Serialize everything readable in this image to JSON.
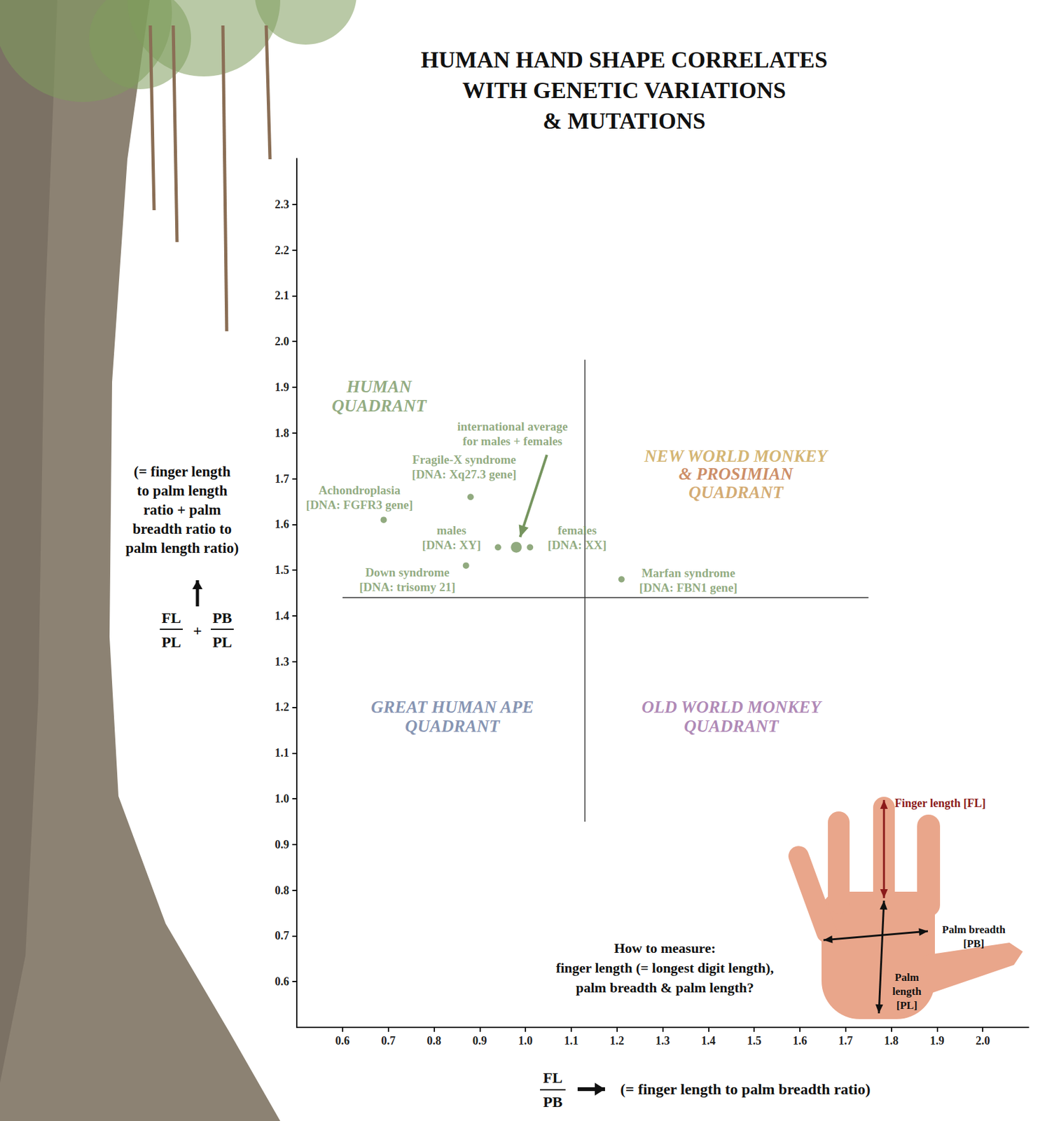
{
  "chart_data": {
    "type": "scatter",
    "title": "HUMAN HAND SHAPE CORRELATES\nWITH GENETIC VARIATIONS\n& MUTATIONS",
    "xlabel": "(= finger length to palm breadth ratio)",
    "x_formula": {
      "numerator": "FL",
      "denominator": "PB"
    },
    "ylabel": "(= finger length\nto palm length\nratio + palm\nbreadth ratio to\npalm length ratio)",
    "y_formula": {
      "terms": [
        {
          "numerator": "FL",
          "denominator": "PL"
        },
        {
          "numerator": "PB",
          "denominator": "PL"
        }
      ],
      "operator": "+"
    },
    "xlim": [
      0.5,
      2.1
    ],
    "ylim": [
      0.5,
      2.4
    ],
    "xticks": [
      0.6,
      0.7,
      0.8,
      0.9,
      {
        "value": 1,
        "label": "1.0"
      },
      1.1,
      1.2,
      1.3,
      1.4,
      1.5,
      1.6,
      1.7,
      1.8,
      1.9,
      {
        "value": 2,
        "label": "2.0"
      }
    ],
    "yticks": [
      0.6,
      0.7,
      0.8,
      0.9,
      {
        "value": 1,
        "label": "1.0"
      },
      1.1,
      1.2,
      1.3,
      1.4,
      1.5,
      1.6,
      1.7,
      1.8,
      1.9,
      {
        "value": 2,
        "label": "2.0"
      },
      2.1,
      2.2,
      2.3
    ],
    "grid": false,
    "series": [
      {
        "color": "#76955f",
        "marker": "circle",
        "x": [
          0.69,
          0.88,
          0.87,
          0.94,
          1.01,
          1.21
        ],
        "values": [
          1.61,
          1.66,
          1.51,
          1.55,
          1.55,
          1.48
        ],
        "labels": [
          "Achondroplasia\n[DNA: FGFR3 gene]",
          "Fragile-X syndrome\n[DNA: Xq27.3 gene]",
          "Down syndrome\n[DNA: trisomy 21]",
          "males\n[DNA: XY]",
          "females\n[DNA: XX]",
          "Marfan syndrome\n[DNA: FBN1 gene]"
        ]
      },
      {
        "color": "#76955f",
        "marker": "large_circle",
        "x": [
          0.98
        ],
        "values": [
          1.55
        ],
        "labels": [
          "international average\nfor males + females"
        ]
      }
    ],
    "quadrant_lines": [
      {
        "x": [
          1.13,
          1.13
        ],
        "y": [
          0.95,
          1.96
        ],
        "color": "#333333"
      },
      {
        "x": [
          0.6,
          1.75
        ],
        "y": [
          1.44,
          1.44
        ],
        "color": "#333333"
      }
    ],
    "annotations": [
      {
        "text": "HUMAN\nQUADRANT",
        "x": 0.68,
        "y": 1.88,
        "color": "#76955f"
      },
      {
        "text": "NEW WORLD MONKEY",
        "x": 1.46,
        "y": 1.75,
        "color": "#c9a24e"
      },
      {
        "text": "& PROSIMIAN",
        "x": 1.46,
        "y": 1.71,
        "color": "#c0703e"
      },
      {
        "text": "QUADRANT",
        "x": 1.46,
        "y": 1.67,
        "color": "#c9954e"
      },
      {
        "text": "GREAT HUMAN APE\nQUADRANT",
        "x": 0.84,
        "y": 1.18,
        "color": "#66789e"
      },
      {
        "text": "OLD WORLD MONKEY\nQUADRANT",
        "x": 1.45,
        "y": 1.18,
        "color": "#9b6aa3"
      }
    ],
    "inset": {
      "caption": "How to measure:\nfinger length (= longest digit length),\npalm breadth & palm length?",
      "finger_length": "Finger length [FL]",
      "palm_breadth": "Palm breadth\n[PB]",
      "palm_length": "Palm\nlength\n[PL]"
    }
  }
}
